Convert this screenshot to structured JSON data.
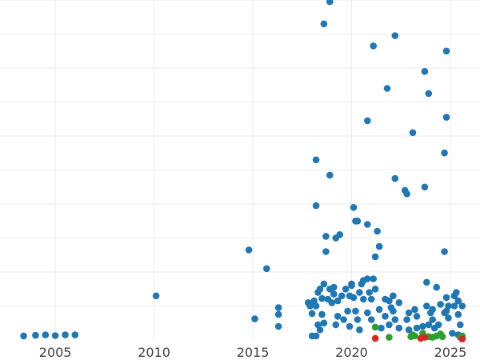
{
  "chart_data": {
    "type": "scatter",
    "title": "",
    "xlabel": "",
    "ylabel": "",
    "xlim": [
      2002.2,
      2026.5
    ],
    "ylim": [
      0,
      1000
    ],
    "x_ticks": [
      2005,
      2010,
      2015,
      2020,
      2025
    ],
    "x_tick_labels": [
      "2005",
      "2010",
      "2015",
      "2020",
      "2025"
    ],
    "grid": true,
    "legend": "none",
    "series": [
      {
        "color": "#1f77b4",
        "points": [
          [
            2003.4,
            12
          ],
          [
            2004.0,
            14
          ],
          [
            2004.5,
            15
          ],
          [
            2005.0,
            13
          ],
          [
            2005.5,
            15
          ],
          [
            2006.0,
            15
          ],
          [
            2010.1,
            130
          ],
          [
            2014.8,
            265
          ],
          [
            2015.1,
            62
          ],
          [
            2015.7,
            210
          ],
          [
            2016.3,
            95
          ],
          [
            2016.3,
            75
          ],
          [
            2016.3,
            40
          ],
          [
            2017.8,
            110
          ],
          [
            2017.9,
            100
          ],
          [
            2018.0,
            78
          ],
          [
            2018.1,
            115
          ],
          [
            2018.2,
            100
          ],
          [
            2018.3,
            140
          ],
          [
            2018.4,
            150
          ],
          [
            2018.5,
            122
          ],
          [
            2018.2,
            395
          ],
          [
            2018.2,
            530
          ],
          [
            2018.6,
            165
          ],
          [
            2018.7,
            260
          ],
          [
            2018.7,
            305
          ],
          [
            2018.3,
            45
          ],
          [
            2018.5,
            75
          ],
          [
            2018.6,
            50
          ],
          [
            2018.6,
            930
          ],
          [
            2018.9,
            995
          ],
          [
            2018.9,
            485
          ],
          [
            2018.2,
            12
          ],
          [
            2018.0,
            12
          ],
          [
            2018.4,
            30
          ],
          [
            2018.8,
            120
          ],
          [
            2018.9,
            150
          ],
          [
            2019.0,
            110
          ],
          [
            2019.1,
            135
          ],
          [
            2019.1,
            155
          ],
          [
            2019.2,
            300
          ],
          [
            2019.2,
            45
          ],
          [
            2019.3,
            70
          ],
          [
            2019.3,
            115
          ],
          [
            2019.4,
            310
          ],
          [
            2019.5,
            130
          ],
          [
            2019.6,
            60
          ],
          [
            2019.7,
            150
          ],
          [
            2019.8,
            85
          ],
          [
            2019.9,
            40
          ],
          [
            2019.9,
            130
          ],
          [
            2020.0,
            165
          ],
          [
            2020.0,
            160
          ],
          [
            2020.1,
            390
          ],
          [
            2020.1,
            125
          ],
          [
            2020.2,
            350
          ],
          [
            2020.2,
            85
          ],
          [
            2020.3,
            350
          ],
          [
            2020.3,
            60
          ],
          [
            2020.4,
            140
          ],
          [
            2020.4,
            30
          ],
          [
            2020.5,
            165
          ],
          [
            2020.6,
            120
          ],
          [
            2020.6,
            175
          ],
          [
            2020.7,
            1045
          ],
          [
            2020.8,
            645
          ],
          [
            2020.8,
            340
          ],
          [
            2020.8,
            180
          ],
          [
            2020.8,
            80
          ],
          [
            2020.9,
            140
          ],
          [
            2021.0,
            120
          ],
          [
            2021.0,
            60
          ],
          [
            2021.1,
            180
          ],
          [
            2021.1,
            865
          ],
          [
            2021.2,
            150
          ],
          [
            2021.2,
            245
          ],
          [
            2021.3,
            320
          ],
          [
            2021.4,
            275
          ],
          [
            2021.4,
            90
          ],
          [
            2021.5,
            35
          ],
          [
            2021.7,
            120
          ],
          [
            2021.7,
            70
          ],
          [
            2021.8,
            740
          ],
          [
            2021.9,
            115
          ],
          [
            2021.9,
            45
          ],
          [
            2022.0,
            95
          ],
          [
            2022.1,
            85
          ],
          [
            2022.1,
            130
          ],
          [
            2022.2,
            475
          ],
          [
            2022.2,
            60
          ],
          [
            2022.2,
            895
          ],
          [
            2022.4,
            110
          ],
          [
            2022.4,
            35
          ],
          [
            2022.7,
            440
          ],
          [
            2022.8,
            430
          ],
          [
            2022.8,
            60
          ],
          [
            2022.9,
            80
          ],
          [
            2022.9,
            30
          ],
          [
            2023.1,
            610
          ],
          [
            2023.2,
            90
          ],
          [
            2023.3,
            70
          ],
          [
            2023.3,
            35
          ],
          [
            2023.6,
            40
          ],
          [
            2023.7,
            450
          ],
          [
            2023.7,
            790
          ],
          [
            2023.8,
            170
          ],
          [
            2023.8,
            100
          ],
          [
            2023.9,
            45
          ],
          [
            2023.9,
            725
          ],
          [
            2024.0,
            80
          ],
          [
            2024.1,
            90
          ],
          [
            2024.1,
            60
          ],
          [
            2024.2,
            35
          ],
          [
            2024.3,
            155
          ],
          [
            2024.4,
            45
          ],
          [
            2024.5,
            105
          ],
          [
            2024.7,
            80
          ],
          [
            2024.7,
            260
          ],
          [
            2024.7,
            550
          ],
          [
            2024.8,
            655
          ],
          [
            2024.8,
            125
          ],
          [
            2024.8,
            85
          ],
          [
            2024.8,
            850
          ],
          [
            2024.9,
            100
          ],
          [
            2024.9,
            65
          ],
          [
            2025.1,
            20
          ],
          [
            2025.2,
            100
          ],
          [
            2025.2,
            130
          ],
          [
            2025.3,
            140
          ],
          [
            2025.4,
            15
          ],
          [
            2025.4,
            75
          ],
          [
            2025.4,
            115
          ],
          [
            2025.5,
            45
          ],
          [
            2025.6,
            10
          ],
          [
            2025.6,
            100
          ]
        ]
      },
      {
        "color": "#2ca02c",
        "points": [
          [
            2021.2,
            38
          ],
          [
            2021.9,
            8
          ],
          [
            2023.0,
            10
          ],
          [
            2023.1,
            15
          ],
          [
            2023.2,
            12
          ],
          [
            2023.6,
            20
          ],
          [
            2023.9,
            10
          ],
          [
            2024.1,
            8
          ],
          [
            2024.3,
            12
          ],
          [
            2024.5,
            18
          ],
          [
            2024.6,
            10
          ],
          [
            2025.5,
            8
          ],
          [
            2025.6,
            12
          ]
        ]
      },
      {
        "color": "#d62728",
        "points": [
          [
            2021.2,
            5
          ],
          [
            2023.5,
            5
          ],
          [
            2023.7,
            8
          ],
          [
            2025.6,
            3
          ]
        ]
      }
    ]
  }
}
